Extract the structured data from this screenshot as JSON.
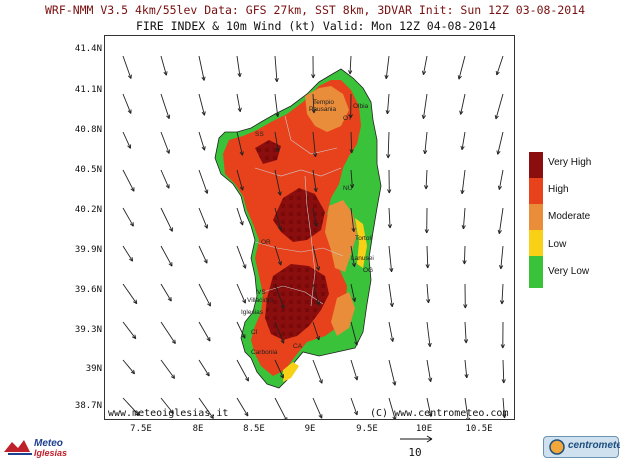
{
  "header": {
    "model_line": "WRF-NMM V3.5 4km/55lev  Data: GFS 27km, SST 8km, 3DVAR  Init: Sun 12Z 03-08-2014",
    "product_line": "FIRE INDEX & 10m Wind (kt)  Valid: Mon 12Z 04-08-2014"
  },
  "map": {
    "region": "Sardinia",
    "lat_labels": [
      "41.4N",
      "41.1N",
      "40.8N",
      "40.5N",
      "40.2N",
      "39.9N",
      "39.6N",
      "39.3N",
      "39N",
      "38.7N"
    ],
    "lon_labels": [
      "7.5E",
      "8E",
      "8.5E",
      "9E",
      "9.5E",
      "10E",
      "10.5E"
    ],
    "towns": [
      "Tempio",
      "Pausania",
      "Olbia",
      "OT",
      "SS",
      "NU",
      "OR",
      "Tortoli",
      "Lanusei",
      "OG",
      "VS",
      "Villacidro",
      "Iglesias",
      "CI",
      "Carbonia",
      "CA"
    ]
  },
  "legend": {
    "items": [
      {
        "label": "Very High",
        "color": "#8b0e0e"
      },
      {
        "label": "High",
        "color": "#e8421c"
      },
      {
        "label": "Moderate",
        "color": "#ea8d3a"
      },
      {
        "label": "Low",
        "color": "#f8d117"
      },
      {
        "label": "Very Low",
        "color": "#39c23a"
      }
    ]
  },
  "credits": {
    "left": "www.meteoiglesias.it",
    "right": "(C) www.centrometeo.com"
  },
  "wind_scale": {
    "label": "10"
  },
  "logos": {
    "left": "Meteo Iglesias",
    "right": "centrometeo"
  }
}
